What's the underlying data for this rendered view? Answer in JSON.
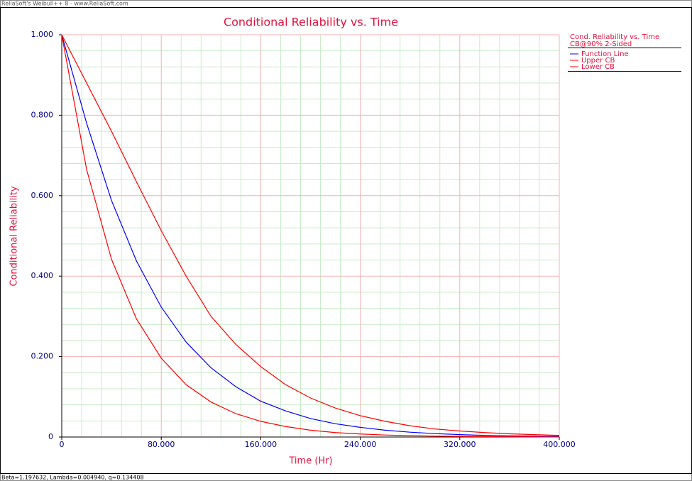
{
  "header": "ReliaSoft's Weibull++ 8 - www.ReliaSoft.com",
  "footer": "Beta=1.197632, Lambda=0.004940, q=0.134408",
  "chart_data": {
    "type": "line",
    "title": "Conditional Reliability vs. Time",
    "x_label": "Time (Hr)",
    "y_label": "Conditional Reliability",
    "legend_title": "Cond. Reliability vs. Time",
    "legend_subtitle": "CB@90% 2-Sided",
    "legend_position": "right",
    "x": [
      0,
      20,
      40,
      60,
      80,
      100,
      120,
      140,
      160,
      180,
      200,
      220,
      240,
      260,
      280,
      300,
      320,
      340,
      360,
      380,
      400
    ],
    "series": [
      {
        "name": "Function Line",
        "color": "#0000ff",
        "values": [
          1,
          0.78,
          0.588,
          0.438,
          0.323,
          0.236,
          0.172,
          0.125,
          0.089,
          0.065,
          0.046,
          0.033,
          0.024,
          0.017,
          0.012,
          0.0085,
          0.006,
          0.004,
          0.003,
          0.002,
          0.0015
        ]
      },
      {
        "name": "Upper CB",
        "color": "#ff0000",
        "values": [
          1,
          0.88,
          0.76,
          0.635,
          0.513,
          0.4,
          0.3,
          0.23,
          0.175,
          0.13,
          0.097,
          0.072,
          0.053,
          0.039,
          0.028,
          0.02,
          0.015,
          0.011,
          0.008,
          0.006,
          0.004
        ]
      },
      {
        "name": "Lower CB",
        "color": "#ff0000",
        "values": [
          1,
          0.665,
          0.442,
          0.294,
          0.196,
          0.13,
          0.087,
          0.058,
          0.039,
          0.026,
          0.017,
          0.011,
          0.0075,
          0.005,
          0.0033,
          0.0022,
          0.0015,
          0.001,
          0.0007,
          0.0004,
          0.0003
        ]
      }
    ],
    "xlim": [
      0,
      400
    ],
    "ylim": [
      0,
      1
    ],
    "xticks": [
      0,
      {
        "value": 80,
        "label": "80.000"
      },
      {
        "value": 160,
        "label": "160.000"
      },
      {
        "value": 240,
        "label": "240.000"
      },
      {
        "value": 320,
        "label": "320.000"
      },
      {
        "value": 400,
        "label": "400.000"
      }
    ],
    "yticks": [
      0,
      {
        "value": 0.2,
        "label": "0.200"
      },
      {
        "value": 0.4,
        "label": "0.400"
      },
      {
        "value": 0.6,
        "label": "0.600"
      },
      {
        "value": 0.8,
        "label": "0.800"
      },
      {
        "value": 1,
        "label": "1.000"
      }
    ],
    "x_minor_ticks": [
      16,
      32,
      48,
      64,
      96,
      112,
      128,
      144,
      176,
      192,
      208,
      224,
      256,
      272,
      288,
      304,
      336,
      352,
      368,
      384
    ],
    "y_minor_ticks": [
      0.04,
      0.08,
      0.12,
      0.16,
      0.24,
      0.28,
      0.32,
      0.36,
      0.44,
      0.48,
      0.52,
      0.56,
      0.64,
      0.68,
      0.72,
      0.76,
      0.84,
      0.88,
      0.92,
      0.96
    ],
    "grid": true,
    "grid_color": "#f4b0b0",
    "minor_grid_color": "#c8ecc8"
  }
}
